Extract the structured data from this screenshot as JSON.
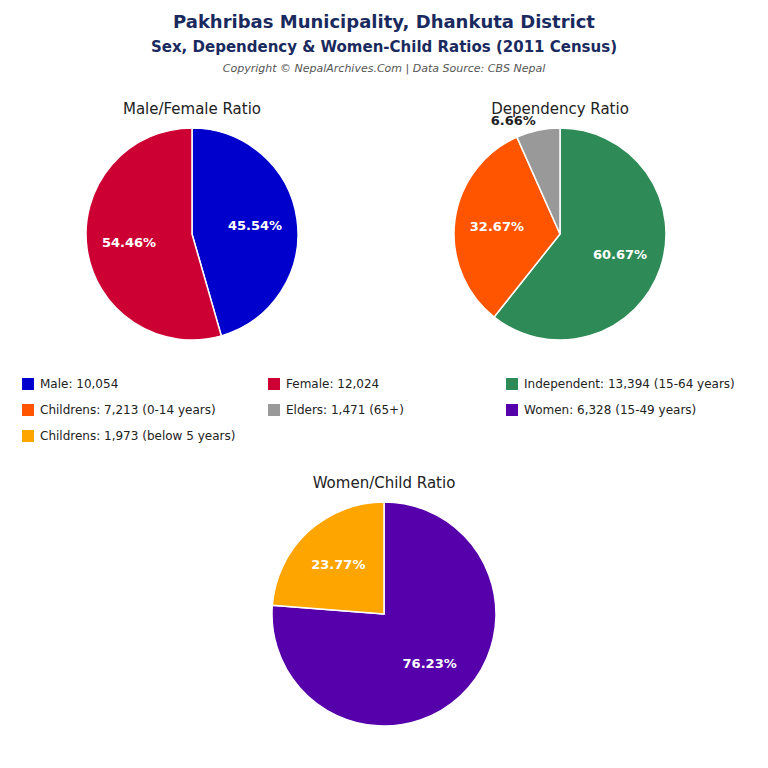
{
  "title": "Pakhribas Municipality, Dhankuta District",
  "subtitle": "Sex, Dependency & Women-Child Ratios (2011 Census)",
  "annotations": [
    "Copyright © NepalArchives.Com | Data Source: CBS Nepal"
  ],
  "chart_data": [
    {
      "type": "pie",
      "title": "Male/Female Ratio",
      "categories": [
        "Male: 10,054",
        "Female: 12,024"
      ],
      "values": [
        45.54,
        54.46
      ],
      "value_labels": [
        "45.54%",
        "54.46%"
      ],
      "colors": [
        "#0000CC",
        "#CC0033"
      ],
      "data_labels": true
    },
    {
      "type": "pie",
      "title": "Dependency Ratio",
      "categories": [
        "Independent: 13,394 (15-64 years)",
        "Childrens: 7,213 (0-14 years)",
        "Elders: 1,471 (65+)"
      ],
      "values": [
        60.67,
        32.67,
        6.66
      ],
      "value_labels": [
        "60.67%",
        "32.67%",
        "6.66%"
      ],
      "colors": [
        "#2E8B57",
        "#FF5500",
        "#999999"
      ],
      "data_labels": true
    },
    {
      "type": "pie",
      "title": "Women/Child Ratio",
      "categories": [
        "Women: 6,328 (15-49 years)",
        "Childrens: 1,973 (below 5 years)"
      ],
      "values": [
        76.23,
        23.77
      ],
      "value_labels": [
        "76.23%",
        "23.77%"
      ],
      "colors": [
        "#5500AA",
        "#FFA500"
      ],
      "data_labels": true
    }
  ]
}
